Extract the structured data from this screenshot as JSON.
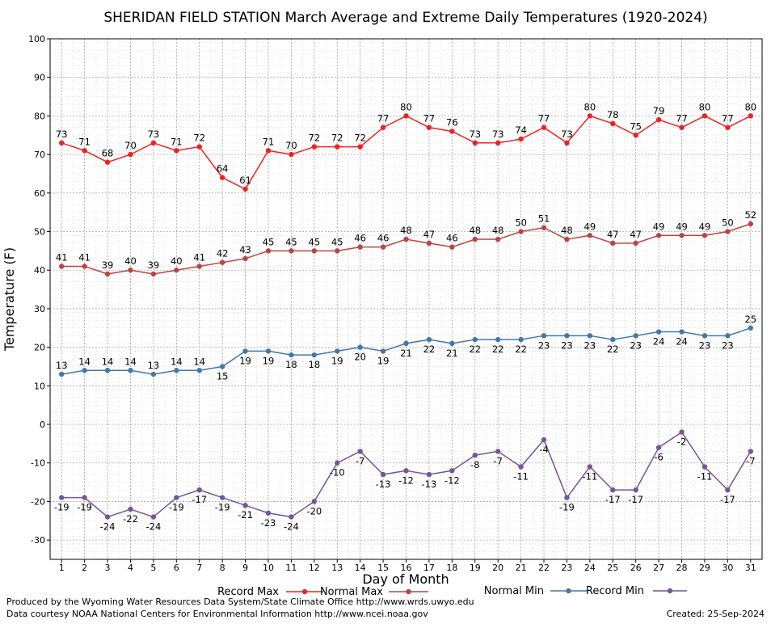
{
  "chart_data": {
    "type": "line",
    "title": "SHERIDAN FIELD STATION March Average and Extreme Daily Temperatures (1920-2024)",
    "xlabel": "Day of Month",
    "ylabel": "Temperature (F)",
    "ylim": [
      -35,
      100
    ],
    "yticks": [
      100,
      90,
      80,
      70,
      60,
      50,
      40,
      30,
      20,
      10,
      0,
      -10,
      -20,
      -30
    ],
    "x": [
      1,
      2,
      3,
      4,
      5,
      6,
      7,
      8,
      9,
      10,
      11,
      12,
      13,
      14,
      15,
      16,
      17,
      18,
      19,
      20,
      21,
      22,
      23,
      24,
      25,
      26,
      27,
      28,
      29,
      30,
      31
    ],
    "grid": true,
    "legend_placement": "bottom",
    "series": [
      {
        "name": "Record Max",
        "color": "#ee2222",
        "values": [
          73,
          71,
          68,
          70,
          73,
          71,
          72,
          64,
          61,
          71,
          70,
          72,
          72,
          72,
          77,
          80,
          77,
          76,
          73,
          73,
          74,
          77,
          73,
          80,
          78,
          75,
          79,
          77,
          80,
          77,
          80
        ]
      },
      {
        "name": "Normal Max",
        "color": "#bb4444",
        "values": [
          41,
          41,
          39,
          40,
          39,
          40,
          41,
          42,
          43,
          45,
          45,
          45,
          45,
          46,
          46,
          48,
          47,
          46,
          48,
          48,
          50,
          51,
          48,
          49,
          47,
          47,
          49,
          49,
          49,
          50,
          52
        ]
      },
      {
        "name": "Normal Min",
        "color": "#4477aa",
        "values": [
          13,
          14,
          14,
          14,
          13,
          14,
          14,
          15,
          19,
          19,
          18,
          18,
          19,
          20,
          19,
          21,
          22,
          21,
          22,
          22,
          22,
          23,
          23,
          23,
          22,
          23,
          24,
          24,
          23,
          23,
          25
        ]
      },
      {
        "name": "Record Min",
        "color": "#775599",
        "values": [
          -19,
          -19,
          -24,
          -22,
          -24,
          -19,
          -17,
          -19,
          -21,
          -23,
          -24,
          -20,
          -10,
          -7,
          -13,
          -12,
          -13,
          -12,
          -8,
          -7,
          -11,
          -4,
          -19,
          -11,
          -17,
          -17,
          -6,
          -2,
          -11,
          -17,
          -7
        ]
      }
    ]
  },
  "footer": {
    "produced_by": "Produced by the Wyoming Water Resources Data System/State Climate Office http://www.wrds.uwyo.edu",
    "courtesy": "Data courtesy NOAA National Centers for Environmental Information http://www.ncei.noaa.gov",
    "created": "Created:  25-Sep-2024"
  }
}
